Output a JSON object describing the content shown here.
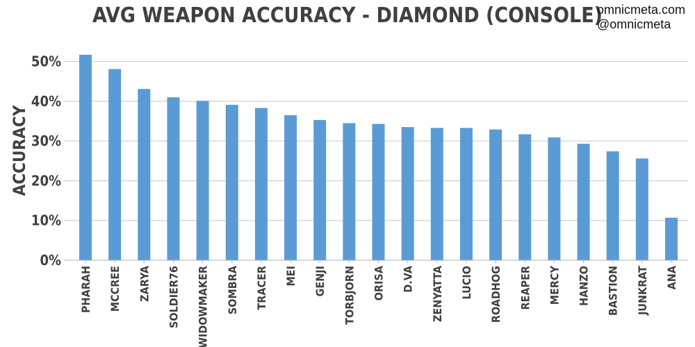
{
  "brand": {
    "line1": "omnicmeta.com",
    "line2": "@omnicmeta"
  },
  "chart_data": {
    "type": "bar",
    "title": "AVG WEAPON ACCURACY - DIAMOND (CONSOLE)",
    "xlabel": "",
    "ylabel": "ACCURACY",
    "ylim": [
      0,
      55
    ],
    "yticks": [
      0,
      10,
      20,
      30,
      40,
      50
    ],
    "ytick_labels": [
      "0%",
      "10%",
      "20%",
      "30%",
      "40%",
      "50%"
    ],
    "grid": true,
    "bar_color": "#5b9bd5",
    "categories": [
      "PHARAH",
      "MCCREE",
      "ZARYA",
      "SOLDIER76",
      "WIDOWMAKER",
      "SOMBRA",
      "TRACER",
      "MEI",
      "GENJI",
      "TORBJORN",
      "ORISA",
      "D.VA",
      "ZENYATTA",
      "LUCIO",
      "ROADHOG",
      "REAPER",
      "MERCY",
      "HANZO",
      "BASTION",
      "JUNKRAT",
      "ANA"
    ],
    "values": [
      51.7,
      48.1,
      43.1,
      41.0,
      40.1,
      39.1,
      38.3,
      36.5,
      35.3,
      34.5,
      34.3,
      33.5,
      33.3,
      33.3,
      32.9,
      31.7,
      30.9,
      29.3,
      27.4,
      25.6,
      10.7
    ]
  }
}
